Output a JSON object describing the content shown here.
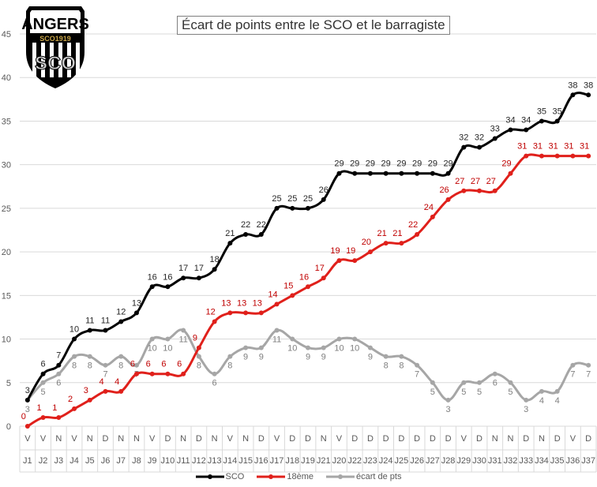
{
  "chart_data": {
    "type": "line",
    "title": "Écart de points entre le SCO et le barragiste",
    "logo_text": [
      "ANGERS",
      "SCO1919",
      "SCO"
    ],
    "categories": [
      "J1",
      "J2",
      "J3",
      "J4",
      "J5",
      "J6",
      "J7",
      "J8",
      "J9",
      "J10",
      "J11",
      "J12",
      "J13",
      "J14",
      "J15",
      "J16",
      "J17",
      "J18",
      "J19",
      "J21",
      "J20",
      "J22",
      "J23",
      "J24",
      "J25",
      "J26",
      "J27",
      "J28",
      "J29",
      "J30",
      "J31",
      "J32",
      "J33",
      "J34",
      "J35",
      "J36",
      "J37"
    ],
    "results": [
      "V",
      "V",
      "N",
      "V",
      "N",
      "D",
      "N",
      "N",
      "V",
      "D",
      "N",
      "D",
      "N",
      "V",
      "N",
      "D",
      "V",
      "D",
      "D",
      "N",
      "V",
      "D",
      "D",
      "D",
      "D",
      "D",
      "D",
      "D",
      "V",
      "D",
      "N",
      "N",
      "D",
      "N",
      "D",
      "V",
      "D"
    ],
    "series": [
      {
        "name": "SCO",
        "color": "#000000",
        "values": [
          3,
          6,
          7,
          10,
          11,
          11,
          12,
          13,
          16,
          16,
          17,
          17,
          18,
          21,
          22,
          22,
          25,
          25,
          25,
          26,
          29,
          29,
          29,
          29,
          29,
          29,
          29,
          29,
          32,
          32,
          33,
          34,
          34,
          35,
          35,
          38,
          38
        ]
      },
      {
        "name": "18ème",
        "color": "#e0201b",
        "values": [
          0,
          1,
          1,
          2,
          3,
          4,
          4,
          6,
          6,
          6,
          6,
          9,
          12,
          13,
          13,
          13,
          14,
          15,
          16,
          17,
          19,
          19,
          20,
          21,
          21,
          22,
          24,
          26,
          27,
          27,
          27,
          29,
          31,
          31,
          31,
          31,
          31
        ]
      },
      {
        "name": "écart de pts",
        "color": "#a6a6a6",
        "values": [
          3,
          5,
          6,
          8,
          8,
          7,
          8,
          7,
          10,
          10,
          11,
          8,
          6,
          8,
          9,
          9,
          11,
          10,
          9,
          9,
          10,
          10,
          9,
          8,
          8,
          7,
          5,
          3,
          5,
          5,
          6,
          5,
          3,
          4,
          4,
          7,
          7
        ]
      }
    ],
    "yticks": [
      "0",
      "5",
      "10",
      "15",
      "20",
      "25",
      "30",
      "35",
      "40",
      "45"
    ],
    "ylim": [
      0,
      45
    ],
    "grid": true,
    "legend": "bottom"
  }
}
